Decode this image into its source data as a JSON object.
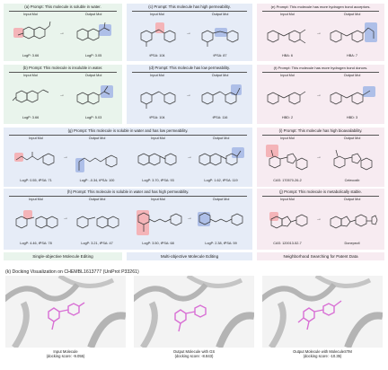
{
  "labels": {
    "input": "Input Mol",
    "output": "Output Mol"
  },
  "panels": {
    "a": {
      "title": "(a) Prompt: This molecule is soluble in water.",
      "in_val": "LogP: 3.66",
      "out_val": "LogP: 3.05"
    },
    "b": {
      "title": "(b) Prompt: This molecule is insoluble in water.",
      "in_val": "LogP: 3.66",
      "out_val": "LogP: 5.03"
    },
    "c": {
      "title": "(c) Prompt: This molecule has high permeability.",
      "in_val": "tPSA: 104",
      "out_val": "tPSA: 87"
    },
    "d": {
      "title": "(d) Prompt: This molecule has low permeability.",
      "in_val": "tPSA: 104",
      "out_val": "tPSA: 116"
    },
    "e": {
      "title": "(e) Prompt: This molecule has more hydrogen bond acceptors.",
      "in_val": "HBA: 6",
      "out_val": "HBA: 7"
    },
    "f": {
      "title": "(f) Prompt: This molecule has more hydrogen bond donors.",
      "in_val": "HBD: 2",
      "out_val": "HBD: 3"
    },
    "g": {
      "title": "(g) Prompt: This molecule is soluble in water and has low permeability.",
      "v1": "LogP: 0.55, tPSA: 71",
      "v2": "LogP: -0.34, tPSA: 100",
      "v3": "LogP: 3.70, tPSA: 93",
      "v4": "LogP: 1.62, tPSA: 119"
    },
    "h": {
      "title": "(h) Prompt: This molecule is soluble in water and has high permeability.",
      "v1": "LogP: 4.46, tPSA: 78",
      "v2": "LogP: 3.21, tPSA: 47",
      "v3": "LogP: 3.50, tPSA: 68",
      "v4": "LogP: 2.38, tPSA: 59"
    },
    "i": {
      "title": "(i) Prompt: This molecule has high bioavailability.",
      "in_val": "CAS: 170570-26-2",
      "out_val": "Celecoxib"
    },
    "j": {
      "title": "(j) Prompt: This molecule is metabolically stable.",
      "in_val": "CAS: 120013-52-7",
      "out_val": "Donepezil"
    }
  },
  "footers": {
    "single": "Single-objective Molecule Editing",
    "multi": "Multi-objective Molecule Editing",
    "neighbor": "Neighborhood Searching for Patent Data"
  },
  "docking": {
    "title": "(k) Docking Visualization on CHEMBL1613777 (UniProt P33261)",
    "items": [
      {
        "line1": "Input Molecule",
        "line2": "(docking score: -9.055)"
      },
      {
        "line1": "Output Molecule with GS",
        "line2": "(docking score: -8.843)"
      },
      {
        "line1": "Output Molecule with MoleculeSTM",
        "line2": "(docking score: -10.35)"
      }
    ]
  },
  "colors": {
    "highlight_red": "#f4b4b8",
    "highlight_blue": "#aebfe8",
    "ligand": "#d86fd4",
    "protein": "#9a9a9a"
  }
}
